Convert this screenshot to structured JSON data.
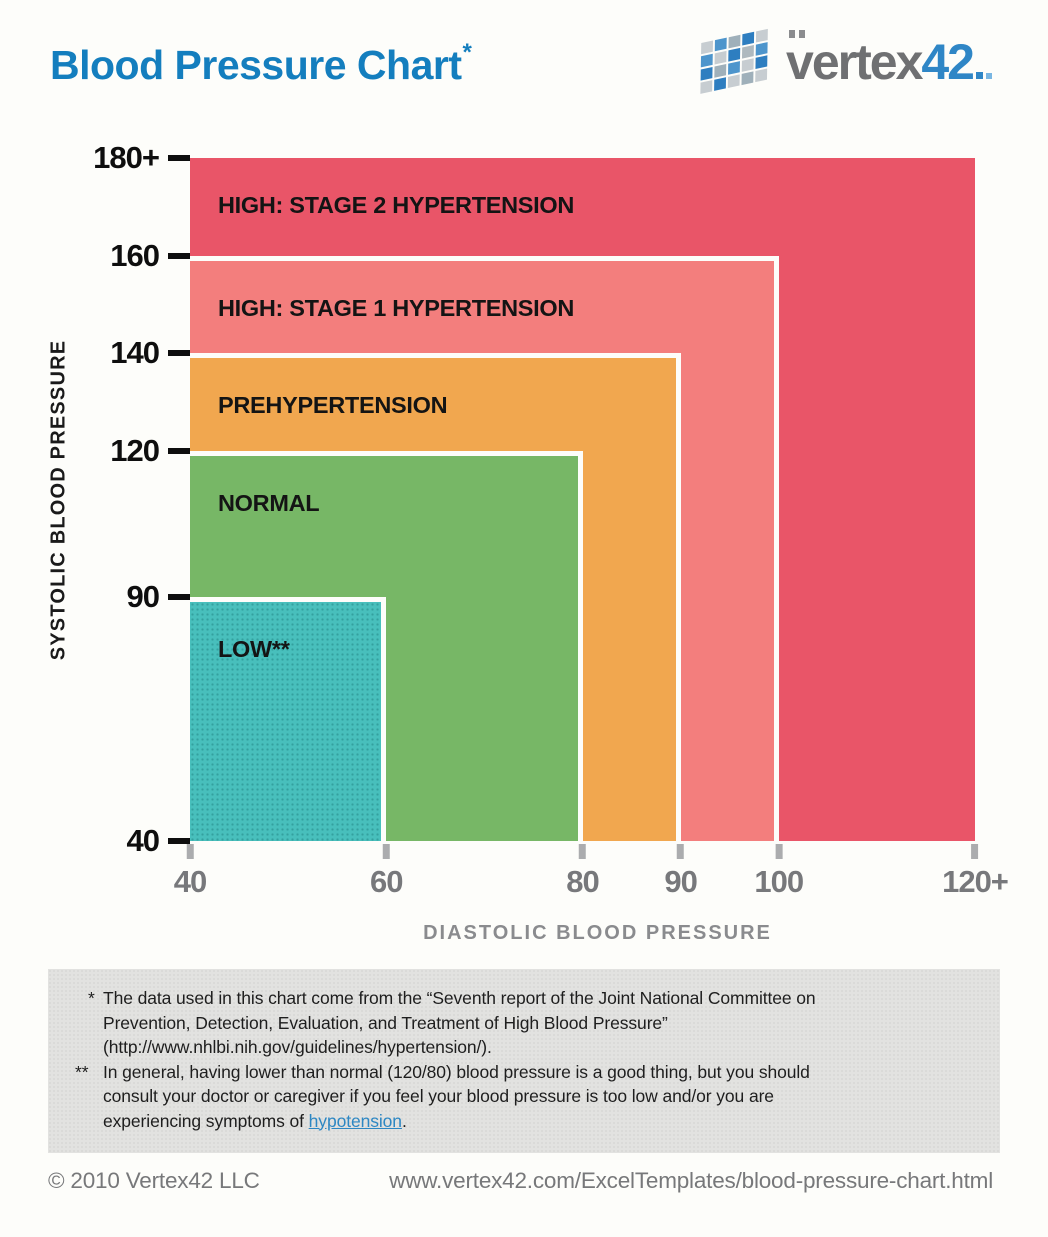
{
  "header": {
    "title": "Blood Pressure Chart",
    "title_asterisk": "*",
    "title_color": "#147EBE",
    "logo": {
      "text_main": "vertex",
      "text_accent": "42",
      "accent_color": "#2F86C6",
      "mosaic_colors": [
        "#C7CDD1",
        "#4D95CC",
        "#9FB0BA",
        "#2E7EC0",
        "#C7CDD1",
        "#4D95CC",
        "#C7CDD1",
        "#2E7EC0",
        "#AEB9BF",
        "#4D95CC",
        "#2E7EC0",
        "#9FB0BA",
        "#4D95CC",
        "#C7CDD1",
        "#2E7EC0",
        "#C7CDD1",
        "#2E7EC0",
        "#C7CDD1",
        "#9FB0BA",
        "#C7CDD1"
      ]
    }
  },
  "chart_data": {
    "type": "area",
    "title": "Blood Pressure Chart*",
    "xlabel": "DIASTOLIC BLOOD PRESSURE",
    "ylabel": "SYSTOLIC BLOOD PRESSURE",
    "xlim": [
      40,
      120
    ],
    "ylim": [
      40,
      180
    ],
    "grid": false,
    "legend": "labels inside regions",
    "x_ticks": [
      {
        "value": 40,
        "label": "40"
      },
      {
        "value": 60,
        "label": "60"
      },
      {
        "value": 80,
        "label": "80"
      },
      {
        "value": 90,
        "label": "90"
      },
      {
        "value": 100,
        "label": "100"
      },
      {
        "value": 120,
        "label": "120+"
      }
    ],
    "y_ticks": [
      {
        "value": 40,
        "label": "40"
      },
      {
        "value": 90,
        "label": "90"
      },
      {
        "value": 120,
        "label": "120"
      },
      {
        "value": 140,
        "label": "140"
      },
      {
        "value": 160,
        "label": "160"
      },
      {
        "value": 180,
        "label": "180+"
      }
    ],
    "regions": [
      {
        "id": "stage2-hypertension",
        "label": "HIGH: STAGE 2 HYPERTENSION",
        "diastolic_max": 120,
        "systolic_max": 180,
        "color": "#E95568",
        "textured": false
      },
      {
        "id": "stage1-hypertension",
        "label": "HIGH: STAGE 1 HYPERTENSION",
        "diastolic_max": 100,
        "systolic_max": 160,
        "color": "#F37E7D",
        "textured": false
      },
      {
        "id": "prehypertension",
        "label": "PREHYPERTENSION",
        "diastolic_max": 90,
        "systolic_max": 140,
        "color": "#F1A74F",
        "textured": false
      },
      {
        "id": "normal",
        "label": "NORMAL",
        "diastolic_max": 80,
        "systolic_max": 120,
        "color": "#77B766",
        "textured": false
      },
      {
        "id": "low",
        "label": "LOW**",
        "diastolic_max": 60,
        "systolic_max": 90,
        "color": "#48BFBC",
        "textured": true
      }
    ]
  },
  "footnotes": {
    "note1": {
      "marker": "*",
      "lines": [
        "The data used in this chart come from the “Seventh report of the Joint National Committee on",
        "Prevention, Detection, Evaluation, and Treatment of High Blood Pressure”",
        "(http://www.nhlbi.nih.gov/guidelines/hypertension/)."
      ]
    },
    "note2": {
      "marker": "**",
      "lines": [
        "In general, having lower than normal (120/80) blood pressure is a good thing, but you should",
        "consult your doctor or caregiver if you feel your blood pressure is too low and/or you are"
      ],
      "last_line": {
        "text": "experiencing symptoms of ",
        "link": "hypotension",
        "suffix": "."
      }
    }
  },
  "footer": {
    "copyright": "© 2010 Vertex42 LLC",
    "url": "www.vertex42.com/ExcelTemplates/blood-pressure-chart.html"
  }
}
